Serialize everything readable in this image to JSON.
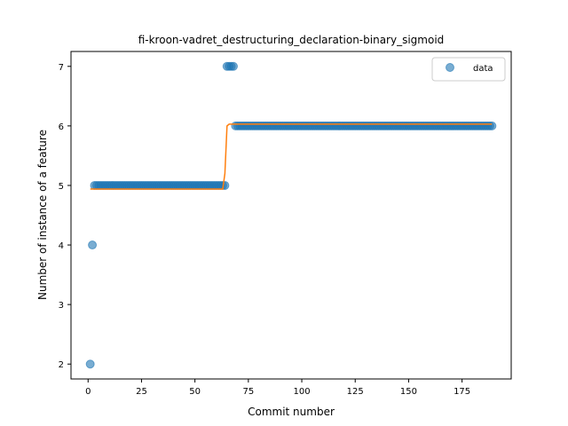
{
  "chart_data": {
    "type": "scatter",
    "title": "fi-kroon-vadret_destructuring_declaration-binary_sigmoid",
    "xlabel": "Commit number",
    "ylabel": "Number of instance of a feature",
    "xlim": [
      -8,
      198
    ],
    "ylim": [
      1.75,
      7.25
    ],
    "xticks": [
      0,
      25,
      50,
      75,
      100,
      125,
      150,
      175
    ],
    "yticks": [
      2,
      3,
      4,
      5,
      6,
      7
    ],
    "grid": false,
    "legend": {
      "placement": "top-right",
      "entries": [
        "data"
      ]
    },
    "colors": {
      "data": "#1f77b4",
      "fit": "#ff7f0e"
    },
    "series": [
      {
        "name": "data",
        "kind": "scatter",
        "segments": [
          {
            "x_start": 1,
            "x_end": 1,
            "y": 2
          },
          {
            "x_start": 2,
            "x_end": 2,
            "y": 4
          },
          {
            "x_start": 3,
            "x_end": 64,
            "y": 5
          },
          {
            "x_start": 65,
            "x_end": 68,
            "y": 7
          },
          {
            "x_start": 69,
            "x_end": 189,
            "y": 6
          }
        ]
      },
      {
        "kind": "line",
        "x": [
          1,
          63,
          64,
          65,
          66,
          189
        ],
        "y": [
          4.94,
          4.94,
          5.2,
          6.0,
          6.03,
          6.03
        ]
      }
    ]
  }
}
